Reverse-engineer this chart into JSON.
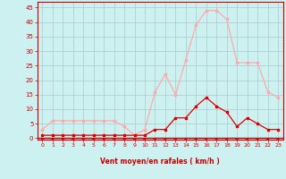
{
  "x": [
    0,
    1,
    2,
    3,
    4,
    5,
    6,
    7,
    8,
    9,
    10,
    11,
    12,
    13,
    14,
    15,
    16,
    17,
    18,
    19,
    20,
    21,
    22,
    23
  ],
  "rafales": [
    3,
    6,
    6,
    6,
    6,
    6,
    6,
    6,
    4,
    1,
    3,
    16,
    22,
    15,
    27,
    39,
    44,
    44,
    41,
    26,
    26,
    26,
    16,
    14
  ],
  "moyen": [
    1,
    1,
    1,
    1,
    1,
    1,
    1,
    1,
    1,
    1,
    1,
    3,
    3,
    7,
    7,
    11,
    14,
    11,
    9,
    4,
    7,
    5,
    3,
    3
  ],
  "bg_color": "#cdf0f0",
  "grid_color": "#aacccc",
  "line_color_rafales": "#ffaaaa",
  "line_color_moyen": "#dd0000",
  "xlabel": "Vent moyen/en rafales ( km/h )",
  "xlabel_color": "#cc0000",
  "ylabel_ticks": [
    0,
    5,
    10,
    15,
    20,
    25,
    30,
    35,
    40,
    45
  ],
  "xlim": [
    -0.5,
    23.5
  ],
  "ylim": [
    -0.5,
    47
  ],
  "arrow_flip_at": 10
}
